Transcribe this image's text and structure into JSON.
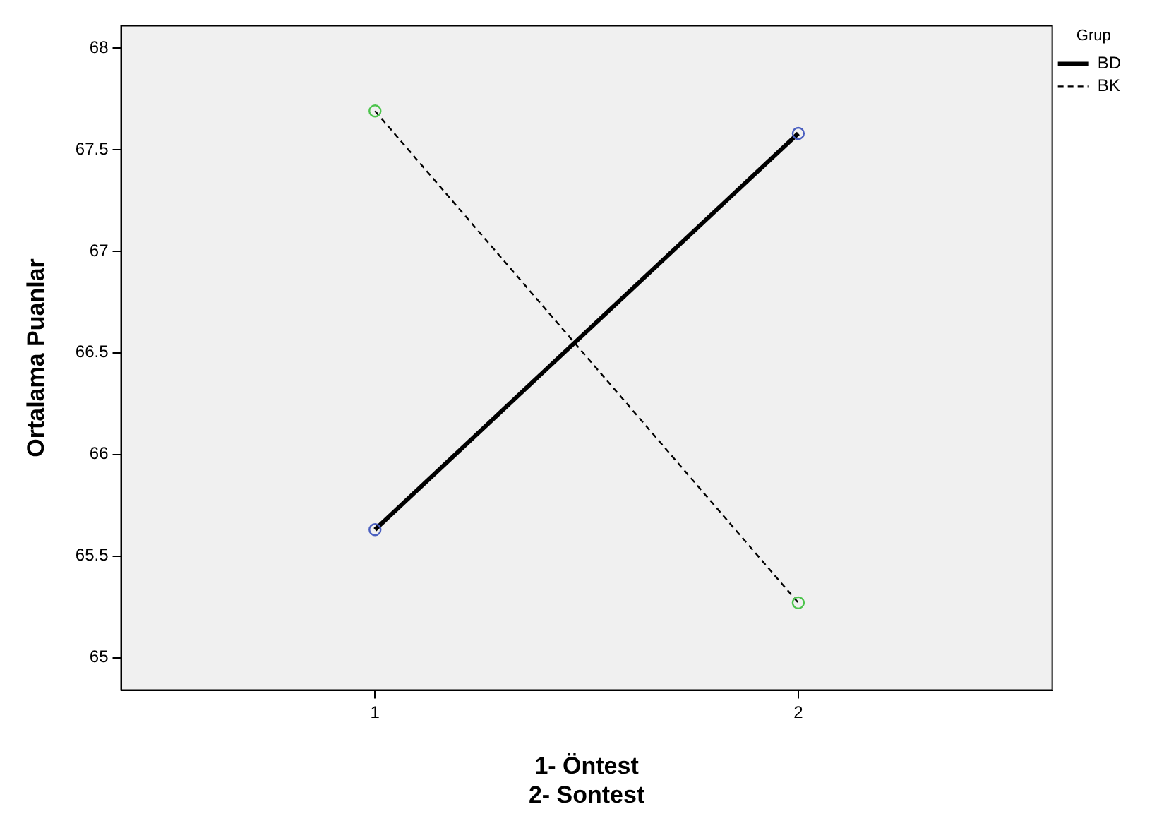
{
  "chart_data": {
    "type": "line",
    "xlabel": "1- Öntest\n2- Sontest",
    "ylabel": "Ortalama Puanlar",
    "legend_title": "Grup",
    "x": [
      1,
      2
    ],
    "series": [
      {
        "name": "BD",
        "color": "#000000",
        "colors": [
          "#4a5fc0",
          "#4a5fc0"
        ],
        "line_style": "solid",
        "values": [
          65.63,
          67.58
        ]
      },
      {
        "name": "BK",
        "color": "#000000",
        "colors": [
          "#4cc44c",
          "#4cc44c"
        ],
        "line_style": "dashed",
        "values": [
          67.69,
          65.27
        ]
      }
    ],
    "xlim": [
      0.4,
      2.6
    ],
    "xticks": [
      1,
      2
    ],
    "ylim": [
      64.84,
      68.11
    ],
    "yticks": [
      65,
      65.5,
      66,
      66.5,
      67,
      67.5,
      68
    ],
    "grid": false,
    "legend": "top right",
    "marker": "circle"
  }
}
